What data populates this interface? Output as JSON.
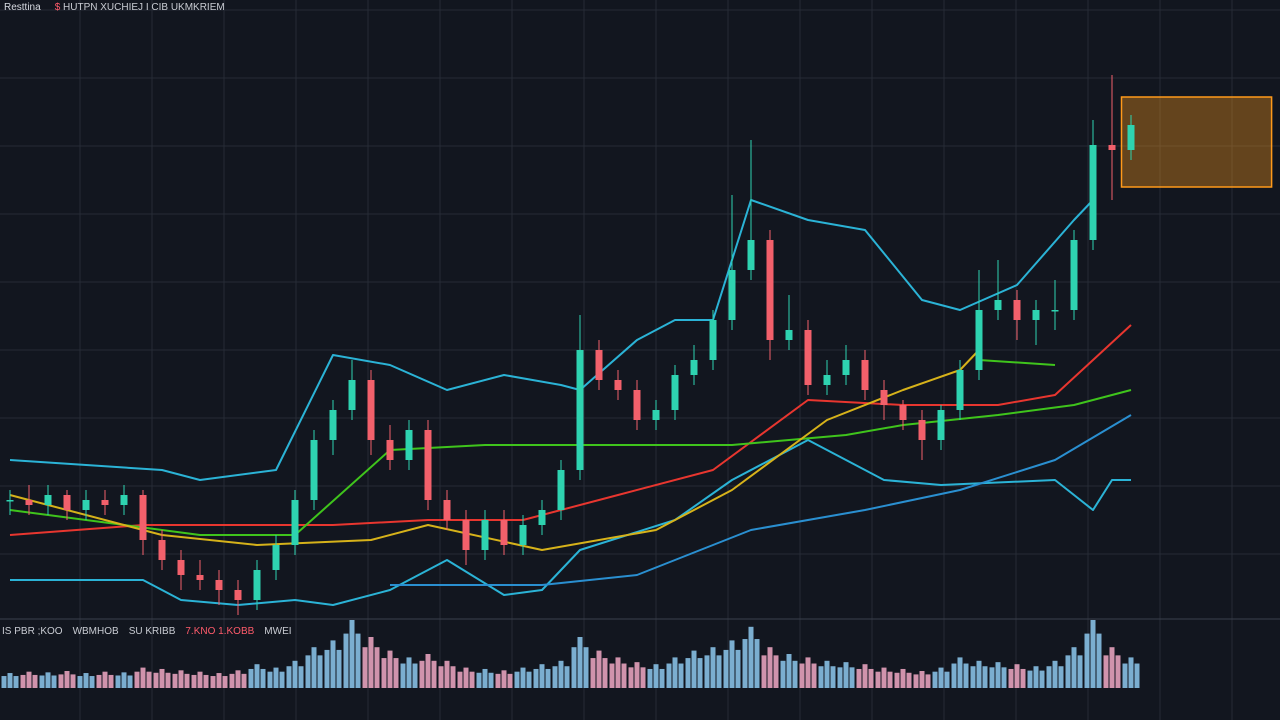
{
  "header": {
    "symbol": "Resttina",
    "title": "HUTPN XUCHIEJ I CIB UKMKRIEM",
    "marker": "$"
  },
  "volume_labels": [
    {
      "text": "IS PBR ;KOO",
      "color": "#c9ccd3"
    },
    {
      "text": "WBMHOB",
      "color": "#c9ccd3"
    },
    {
      "text": "SU KRIBB",
      "color": "#c9ccd3"
    },
    {
      "text": "7.KNO 1.KOBB",
      "color": "#ff5b6b"
    },
    {
      "text": "MWEI",
      "color": "#c9ccd3"
    }
  ],
  "colors": {
    "up": "#2ed3b0",
    "down": "#f2606b",
    "upper_band": "#2bb3d6",
    "lower_band": "#2bb3d6",
    "slow_ma": "#2a8fd0",
    "red_ma": "#e8362f",
    "green_ma": "#3fc41c",
    "yellow_ma": "#d6b21a",
    "box": "#ff9a1a",
    "vol_up": "#8ec9f0",
    "vol_down": "#f2a9c6",
    "grid": "#262b36"
  },
  "chart_data": {
    "type": "candlestick",
    "title": "HUTPN XUCHIEJ I CIB UKMKRIEM",
    "ylim": [
      0,
      124
    ],
    "grid": true,
    "candles": [
      [
        24,
        26,
        21,
        24
      ],
      [
        24,
        27,
        21,
        23
      ],
      [
        23,
        27,
        21,
        25
      ],
      [
        25,
        26,
        20,
        22
      ],
      [
        22,
        26,
        20,
        24
      ],
      [
        24,
        26,
        21,
        23
      ],
      [
        23,
        27,
        21,
        25
      ],
      [
        25,
        26,
        13,
        16
      ],
      [
        16,
        18,
        10,
        12
      ],
      [
        12,
        14,
        6,
        9
      ],
      [
        9,
        12,
        6,
        8
      ],
      [
        8,
        10,
        3,
        6
      ],
      [
        6,
        8,
        1,
        4
      ],
      [
        4,
        12,
        2,
        10
      ],
      [
        10,
        17,
        8,
        15
      ],
      [
        15,
        26,
        13,
        24
      ],
      [
        24,
        38,
        22,
        36
      ],
      [
        36,
        44,
        33,
        42
      ],
      [
        42,
        52,
        40,
        48
      ],
      [
        48,
        50,
        33,
        36
      ],
      [
        36,
        39,
        30,
        32
      ],
      [
        32,
        40,
        30,
        38
      ],
      [
        38,
        40,
        22,
        24
      ],
      [
        24,
        26,
        18,
        20
      ],
      [
        20,
        22,
        11,
        14
      ],
      [
        14,
        22,
        12,
        20
      ],
      [
        20,
        22,
        13,
        15
      ],
      [
        15,
        21,
        13,
        19
      ],
      [
        19,
        24,
        17,
        22
      ],
      [
        22,
        32,
        20,
        30
      ],
      [
        30,
        61,
        28,
        54
      ],
      [
        54,
        56,
        46,
        48
      ],
      [
        48,
        50,
        44,
        46
      ],
      [
        46,
        48,
        38,
        40
      ],
      [
        40,
        44,
        38,
        42
      ],
      [
        42,
        51,
        40,
        49
      ],
      [
        49,
        55,
        47,
        52
      ],
      [
        52,
        62,
        50,
        60
      ],
      [
        60,
        85,
        58,
        70
      ],
      [
        70,
        96,
        68,
        76
      ],
      [
        76,
        78,
        52,
        56
      ],
      [
        56,
        65,
        54,
        58
      ],
      [
        58,
        60,
        45,
        47
      ],
      [
        47,
        52,
        45,
        49
      ],
      [
        49,
        55,
        47,
        52
      ],
      [
        52,
        54,
        44,
        46
      ],
      [
        46,
        48,
        40,
        43
      ],
      [
        43,
        44,
        38,
        40
      ],
      [
        40,
        42,
        32,
        36
      ],
      [
        36,
        43,
        34,
        42
      ],
      [
        42,
        52,
        40,
        50
      ],
      [
        50,
        70,
        48,
        62
      ],
      [
        62,
        72,
        60,
        64
      ],
      [
        64,
        66,
        56,
        60
      ],
      [
        60,
        64,
        55,
        62
      ],
      [
        62,
        68,
        58,
        62
      ],
      [
        62,
        78,
        60,
        76
      ],
      [
        76,
        100,
        74,
        95
      ],
      [
        95,
        109,
        84,
        94
      ],
      [
        94,
        101,
        92,
        99
      ]
    ],
    "volume": [
      22,
      24,
      23,
      25,
      22,
      24,
      23,
      30,
      28,
      26,
      24,
      22,
      26,
      35,
      30,
      40,
      60,
      70,
      100,
      75,
      55,
      45,
      50,
      40,
      30,
      28,
      26,
      30,
      35,
      40,
      75,
      55,
      45,
      38,
      35,
      45,
      55,
      60,
      70,
      90,
      60,
      50,
      45,
      40,
      38,
      35,
      30,
      28,
      25,
      30,
      45,
      40,
      38,
      35,
      32,
      40,
      60,
      100,
      60,
      45
    ],
    "series": [
      {
        "name": "Upper band",
        "key": "upper_band",
        "points": [
          [
            0,
            32
          ],
          [
            8,
            30
          ],
          [
            10,
            28
          ],
          [
            14,
            30
          ],
          [
            17,
            53
          ],
          [
            20,
            51
          ],
          [
            23,
            46
          ],
          [
            26,
            49
          ],
          [
            29,
            47
          ],
          [
            30,
            46
          ],
          [
            33,
            56
          ],
          [
            35,
            60
          ],
          [
            37,
            60
          ],
          [
            39,
            84
          ],
          [
            42,
            80
          ],
          [
            45,
            78
          ],
          [
            48,
            64
          ],
          [
            50,
            62
          ],
          [
            53,
            67
          ],
          [
            56,
            80
          ],
          [
            57,
            84
          ]
        ]
      },
      {
        "name": "Lower band",
        "key": "lower_band",
        "points": [
          [
            0,
            8
          ],
          [
            7,
            8
          ],
          [
            9,
            4
          ],
          [
            12,
            3
          ],
          [
            15,
            4
          ],
          [
            17,
            3
          ],
          [
            20,
            6
          ],
          [
            23,
            12
          ],
          [
            26,
            5
          ],
          [
            28,
            6
          ],
          [
            30,
            14
          ],
          [
            35,
            20
          ],
          [
            38,
            28
          ],
          [
            42,
            36
          ],
          [
            46,
            28
          ],
          [
            49,
            27
          ],
          [
            55,
            28
          ],
          [
            57,
            22
          ],
          [
            58,
            28
          ],
          [
            59,
            28
          ]
        ]
      },
      {
        "name": "Slow MA",
        "key": "slow_ma",
        "points": [
          [
            20,
            7
          ],
          [
            28,
            7
          ],
          [
            33,
            9
          ],
          [
            39,
            18
          ],
          [
            45,
            22
          ],
          [
            50,
            26
          ],
          [
            55,
            32
          ],
          [
            59,
            41
          ]
        ]
      },
      {
        "name": "Red MA",
        "key": "red_ma",
        "points": [
          [
            0,
            17
          ],
          [
            7,
            19
          ],
          [
            10,
            19
          ],
          [
            17,
            19
          ],
          [
            22,
            20
          ],
          [
            27,
            20
          ],
          [
            32,
            25
          ],
          [
            37,
            30
          ],
          [
            42,
            44
          ],
          [
            47,
            43
          ],
          [
            52,
            43
          ],
          [
            55,
            45
          ],
          [
            59,
            59
          ]
        ]
      },
      {
        "name": "Green MA",
        "key": "green_ma",
        "points": [
          [
            0,
            22
          ],
          [
            10,
            17
          ],
          [
            15,
            17
          ],
          [
            20,
            34
          ],
          [
            25,
            35
          ],
          [
            30,
            35
          ],
          [
            38,
            35
          ],
          [
            44,
            37
          ],
          [
            47,
            39
          ],
          [
            52,
            41
          ],
          [
            56,
            43
          ],
          [
            59,
            46
          ]
        ]
      },
      {
        "name": "Yellow MA",
        "key": "yellow_ma",
        "points": [
          [
            0,
            25
          ],
          [
            8,
            17
          ],
          [
            13,
            15
          ],
          [
            19,
            16
          ],
          [
            22,
            19
          ],
          [
            28,
            14
          ],
          [
            34,
            18
          ],
          [
            38,
            26
          ],
          [
            43,
            40
          ],
          [
            47,
            46
          ],
          [
            50,
            50
          ],
          [
            51,
            54
          ]
        ]
      },
      {
        "name": "Green MA short",
        "key": "green_ma",
        "points": [
          [
            51,
            52
          ],
          [
            55,
            51
          ]
        ]
      }
    ],
    "annotations": [
      {
        "type": "box",
        "x_from": 58.5,
        "x_to": 66.4,
        "y_from": 86.6,
        "y_to": 104.6
      }
    ]
  }
}
